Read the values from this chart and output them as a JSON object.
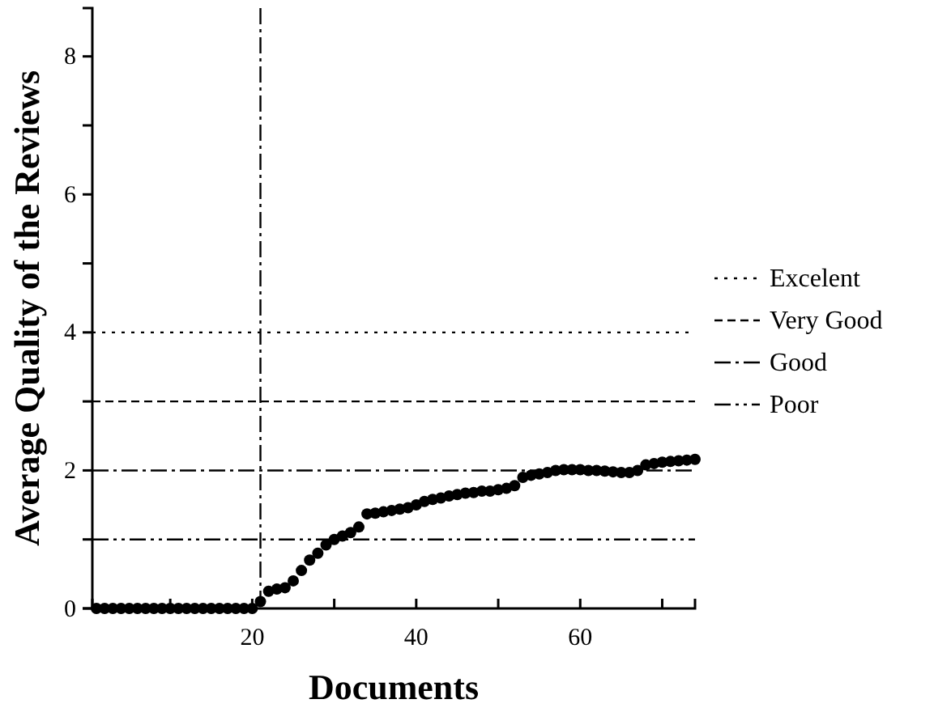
{
  "chart_data": {
    "type": "scatter",
    "xlabel": "Documents",
    "ylabel": "Average Quality of the Reviews",
    "x": [
      1,
      2,
      3,
      4,
      5,
      6,
      7,
      8,
      9,
      10,
      11,
      12,
      13,
      14,
      15,
      16,
      17,
      18,
      19,
      20,
      21,
      22,
      23,
      24,
      25,
      26,
      27,
      28,
      29,
      30,
      31,
      32,
      33,
      34,
      35,
      36,
      37,
      38,
      39,
      40,
      41,
      42,
      43,
      44,
      45,
      46,
      47,
      48,
      49,
      50,
      51,
      52,
      53,
      54,
      55,
      56,
      57,
      58,
      59,
      60,
      61,
      62,
      63,
      64,
      65,
      66,
      67,
      68,
      69,
      70,
      71,
      72,
      73,
      74
    ],
    "series": [
      {
        "color": "#000000",
        "values": [
          0,
          0,
          0,
          0,
          0,
          0,
          0,
          0,
          0,
          0,
          0,
          0,
          0,
          0,
          0,
          0,
          0,
          0,
          0,
          0,
          0.1,
          0.25,
          0.28,
          0.3,
          0.4,
          0.55,
          0.7,
          0.8,
          0.92,
          1.0,
          1.05,
          1.1,
          1.18,
          1.37,
          1.38,
          1.4,
          1.42,
          1.44,
          1.46,
          1.5,
          1.55,
          1.58,
          1.6,
          1.63,
          1.65,
          1.67,
          1.68,
          1.7,
          1.7,
          1.72,
          1.74,
          1.78,
          1.9,
          1.93,
          1.95,
          1.97,
          2.0,
          2.01,
          2.01,
          2.01,
          2.0,
          2.0,
          1.99,
          1.98,
          1.97,
          1.97,
          2.0,
          2.08,
          2.1,
          2.12,
          2.13,
          2.14,
          2.15,
          2.16
        ]
      }
    ],
    "marker": "circle",
    "xlim": [
      0.5,
      74
    ],
    "ylim": [
      0,
      8.7
    ],
    "xticks": [
      {
        "value": 10,
        "label": null
      },
      20,
      {
        "value": 30,
        "label": null
      },
      40,
      {
        "value": 50,
        "label": null
      },
      60,
      {
        "value": 70,
        "label": null
      }
    ],
    "yticks": [
      0,
      {
        "value": 1,
        "label": null
      },
      2,
      {
        "value": 3,
        "label": null
      },
      4,
      {
        "value": 5,
        "label": null
      },
      6,
      {
        "value": 7,
        "label": null
      },
      8
    ],
    "grid": false,
    "legend": "right",
    "ref_lines": [
      {
        "axis": "y",
        "value": 4,
        "label": "Excelent",
        "line_style": "dotted",
        "color": "#000000"
      },
      {
        "axis": "y",
        "value": 3,
        "label": "Very Good",
        "line_style": "dashed",
        "color": "#000000"
      },
      {
        "axis": "y",
        "value": 2,
        "label": "Good",
        "line_style": "dashdot",
        "color": "#000000"
      },
      {
        "axis": "y",
        "value": 1,
        "label": "Poor",
        "line_style": "dashdotdot",
        "color": "#000000"
      },
      {
        "axis": "x",
        "value": 21,
        "line_style": "dashdot",
        "color": "#000000"
      }
    ]
  }
}
